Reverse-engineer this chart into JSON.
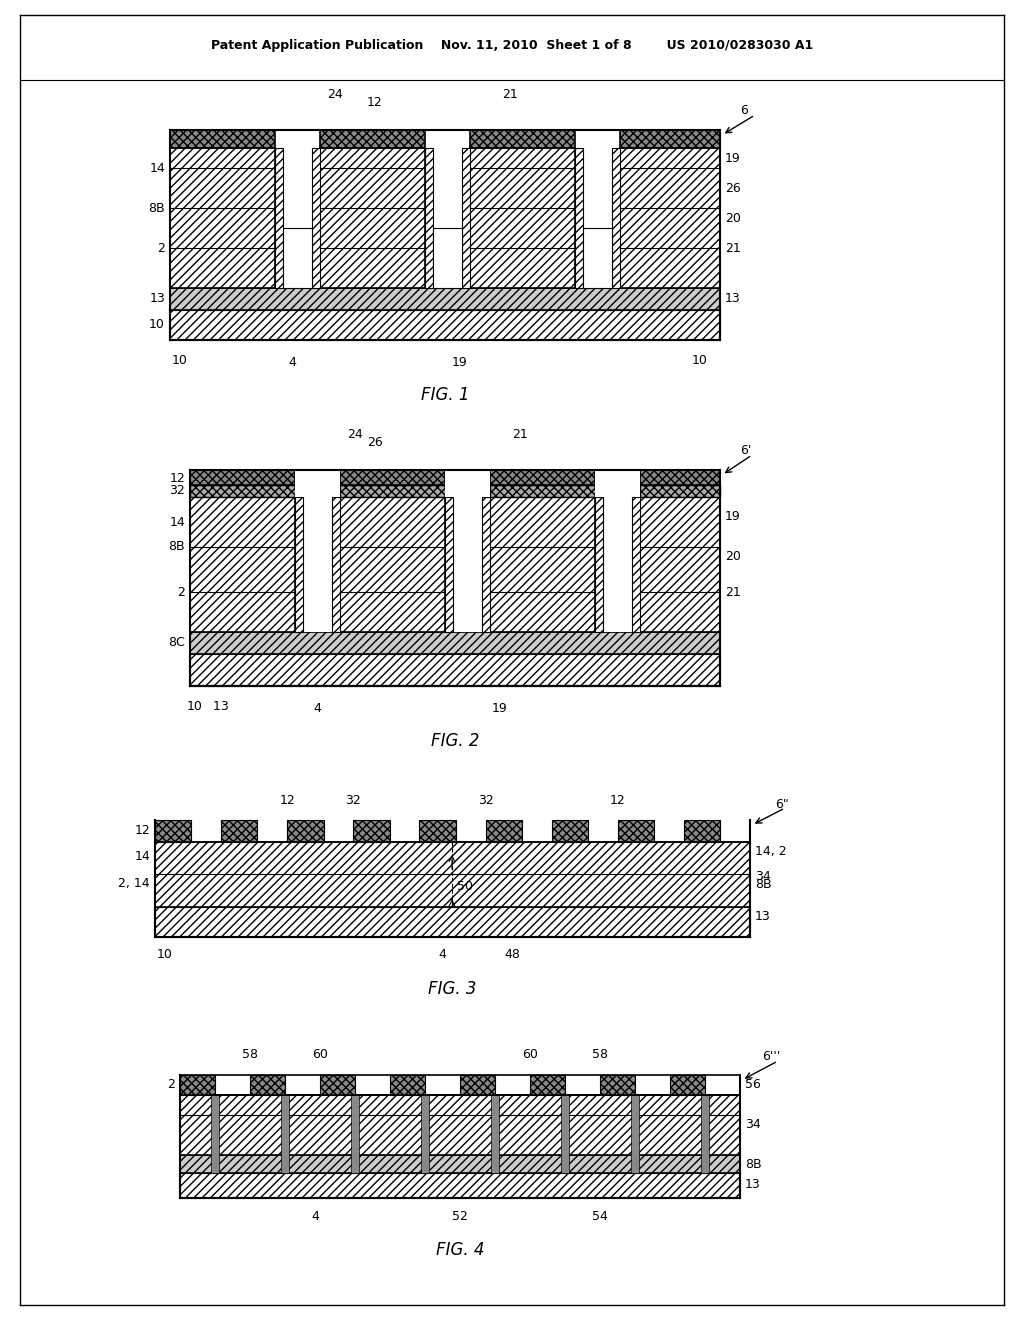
{
  "bg_color": "#ffffff",
  "line_color": "#000000",
  "hatch_color": "#000000",
  "header_text": "Patent Application Publication    Nov. 11, 2010  Sheet 1 of 8        US 2010/0283030 A1",
  "fig1_caption": "FIG. 1",
  "fig2_caption": "FIG. 2",
  "fig3_caption": "FIG. 3",
  "fig4_caption": "FIG. 4"
}
